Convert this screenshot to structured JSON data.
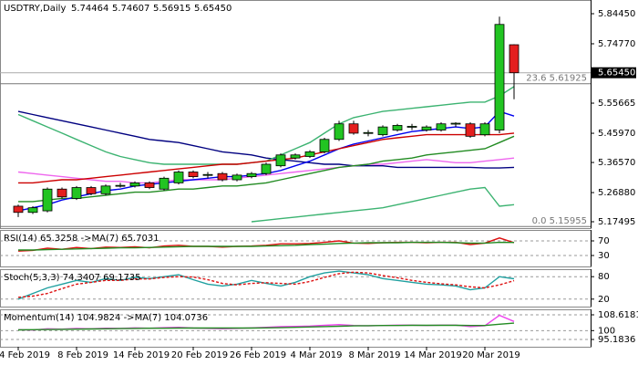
{
  "chart_data": [
    {
      "type": "candlestick",
      "title": "USDTRY,Daily",
      "ohlc_labels": [
        "5.74464",
        "5.74607",
        "5.56915",
        "5.65450"
      ],
      "categories": [
        "4 Feb 2019",
        null,
        null,
        null,
        "8 Feb 2019",
        null,
        null,
        null,
        "14 Feb 2019",
        null,
        null,
        null,
        "20 Feb 2019",
        null,
        null,
        null,
        "26 Feb 2019",
        null,
        null,
        null,
        "4 Mar 2019",
        null,
        null,
        null,
        "8 Mar 2019",
        null,
        null,
        null,
        "14 Mar 2019",
        null,
        null,
        null,
        "20 Mar 2019",
        null,
        null
      ],
      "open": [
        5.225,
        5.205,
        5.21,
        5.28,
        5.25,
        5.285,
        5.265,
        5.29,
        5.29,
        5.3,
        5.28,
        5.3,
        5.335,
        5.325,
        5.33,
        5.31,
        5.32,
        5.33,
        5.355,
        5.38,
        5.385,
        5.4,
        5.44,
        5.49,
        5.46,
        5.455,
        5.47,
        5.48,
        5.47,
        5.47,
        5.49,
        5.49,
        5.455,
        5.47,
        5.74464
      ],
      "high": [
        5.23,
        5.225,
        5.285,
        5.285,
        5.29,
        5.29,
        5.295,
        5.3,
        5.305,
        5.305,
        5.32,
        5.34,
        5.34,
        5.335,
        5.335,
        5.33,
        5.335,
        5.365,
        5.395,
        5.395,
        5.405,
        5.445,
        5.5,
        5.5,
        5.47,
        5.485,
        5.49,
        5.49,
        5.485,
        5.495,
        5.495,
        5.495,
        5.495,
        5.835,
        5.74607
      ],
      "low": [
        5.19,
        5.2,
        5.205,
        5.25,
        5.245,
        5.26,
        5.26,
        5.285,
        5.285,
        5.28,
        5.275,
        5.295,
        5.315,
        5.315,
        5.305,
        5.305,
        5.315,
        5.325,
        5.35,
        5.375,
        5.38,
        5.395,
        5.435,
        5.455,
        5.45,
        5.45,
        5.465,
        5.47,
        5.465,
        5.465,
        5.48,
        5.445,
        5.45,
        5.46,
        5.56915
      ],
      "close": [
        5.205,
        5.22,
        5.28,
        5.255,
        5.285,
        5.265,
        5.29,
        5.292,
        5.3,
        5.285,
        5.315,
        5.335,
        5.32,
        5.327,
        5.31,
        5.325,
        5.33,
        5.36,
        5.39,
        5.39,
        5.4,
        5.44,
        5.49,
        5.46,
        5.462,
        5.48,
        5.485,
        5.482,
        5.48,
        5.49,
        5.492,
        5.45,
        5.49,
        5.81,
        5.6545
      ],
      "up_color": "#22c422",
      "down_color": "#e41e1e",
      "series": [
        {
          "color": "#000080",
          "values": [
            5.53,
            5.52,
            5.51,
            5.5,
            5.49,
            5.48,
            5.47,
            5.46,
            5.45,
            5.44,
            5.435,
            5.43,
            5.42,
            5.41,
            5.4,
            5.395,
            5.39,
            5.38,
            5.375,
            5.37,
            5.365,
            5.36,
            5.36,
            5.355,
            5.355,
            5.355,
            5.35,
            5.35,
            5.35,
            5.35,
            5.35,
            5.35,
            5.348,
            5.348,
            5.35
          ]
        },
        {
          "color": "#3cb371",
          "values": [
            5.52,
            5.5,
            5.48,
            5.46,
            5.44,
            5.42,
            5.4,
            5.385,
            5.375,
            5.365,
            5.36,
            5.36,
            5.36,
            5.36,
            5.36,
            5.36,
            5.365,
            5.37,
            5.39,
            5.41,
            5.43,
            5.46,
            5.49,
            5.51,
            5.52,
            5.53,
            5.535,
            5.54,
            5.545,
            5.55,
            5.555,
            5.56,
            5.56,
            5.58,
            5.61
          ]
        },
        {
          "color": "#3cb371",
          "values": [
            null,
            null,
            null,
            null,
            null,
            null,
            null,
            null,
            null,
            null,
            null,
            null,
            null,
            null,
            null,
            null,
            5.175,
            5.18,
            5.185,
            5.19,
            5.195,
            5.2,
            5.205,
            5.21,
            5.215,
            5.22,
            5.23,
            5.24,
            5.25,
            5.26,
            5.27,
            5.28,
            5.285,
            5.225,
            5.23
          ]
        },
        {
          "color": "#ee66ee",
          "values": [
            5.335,
            5.33,
            5.325,
            5.32,
            5.315,
            5.31,
            5.305,
            5.305,
            5.3,
            5.3,
            5.305,
            5.31,
            5.31,
            5.31,
            5.31,
            5.315,
            5.32,
            5.325,
            5.33,
            5.335,
            5.34,
            5.345,
            5.35,
            5.355,
            5.36,
            5.36,
            5.365,
            5.37,
            5.375,
            5.37,
            5.365,
            5.365,
            5.37,
            5.375,
            5.38
          ]
        },
        {
          "color": "#228b22",
          "values": [
            5.24,
            5.24,
            5.245,
            5.25,
            5.25,
            5.255,
            5.26,
            5.265,
            5.27,
            5.27,
            5.275,
            5.28,
            5.28,
            5.285,
            5.29,
            5.29,
            5.295,
            5.3,
            5.31,
            5.32,
            5.33,
            5.34,
            5.35,
            5.355,
            5.36,
            5.37,
            5.375,
            5.38,
            5.39,
            5.395,
            5.4,
            5.405,
            5.41,
            5.43,
            5.45
          ]
        },
        {
          "color": "#0000ee",
          "values": [
            5.21,
            5.22,
            5.23,
            5.245,
            5.255,
            5.265,
            5.275,
            5.28,
            5.29,
            5.295,
            5.3,
            5.305,
            5.31,
            5.315,
            5.32,
            5.32,
            5.325,
            5.33,
            5.34,
            5.355,
            5.37,
            5.39,
            5.41,
            5.425,
            5.435,
            5.445,
            5.455,
            5.465,
            5.47,
            5.475,
            5.48,
            5.475,
            5.48,
            5.53,
            5.515
          ]
        },
        {
          "color": "#cc0000",
          "values": [
            5.3,
            5.3,
            5.305,
            5.31,
            5.31,
            5.315,
            5.32,
            5.325,
            5.33,
            5.335,
            5.34,
            5.345,
            5.35,
            5.355,
            5.36,
            5.36,
            5.365,
            5.37,
            5.375,
            5.38,
            5.39,
            5.4,
            5.41,
            5.42,
            5.43,
            5.44,
            5.445,
            5.45,
            5.455,
            5.455,
            5.455,
            5.455,
            5.455,
            5.455,
            5.46
          ]
        }
      ],
      "ylim": [
        5.1544,
        5.8886
      ],
      "yticks": [
        {
          "value": 5.8445,
          "label": "5.84450"
        },
        {
          "value": 5.7477,
          "label": "5.74770"
        },
        {
          "value": 5.55665,
          "label": "5.55665"
        },
        {
          "value": 5.4597,
          "label": "5.45970"
        },
        {
          "value": 5.3657,
          "label": "5.36570"
        },
        {
          "value": 5.2688,
          "label": "5.26880"
        },
        {
          "value": 5.17495,
          "label": "5.17495"
        }
      ],
      "price_marker": {
        "value": 5.6545,
        "label": "5.65450"
      },
      "fib_levels": [
        {
          "value": 5.61925,
          "label": "23.6 5.61925"
        },
        {
          "value": 5.15955,
          "label": "0.0 5.15955"
        }
      ]
    },
    {
      "type": "line",
      "title": "RSI(14) 65.3258 ->MA(7) 65.7031",
      "series": [
        {
          "color": "#dd1111",
          "values": [
            42,
            44,
            50,
            47,
            52,
            49,
            53,
            52,
            54,
            51,
            56,
            58,
            55,
            55,
            53,
            55,
            56,
            58,
            62,
            62,
            63,
            66,
            70,
            64,
            63,
            65,
            66,
            66,
            65,
            66,
            66,
            60,
            64,
            78,
            65.3258
          ]
        },
        {
          "color": "#228b22",
          "values": [
            45,
            45,
            46,
            47,
            48,
            49,
            50,
            51,
            51,
            52,
            53,
            54,
            55,
            55,
            55,
            55,
            55,
            56,
            57,
            58,
            60,
            61,
            63,
            64,
            65,
            65,
            65,
            66,
            66,
            66,
            65,
            64,
            64,
            66,
            65.7031
          ]
        }
      ],
      "ylim": [
        0,
        100
      ],
      "yticks": [
        70,
        30
      ],
      "level_lines": true
    },
    {
      "type": "line",
      "title": "Stoch(5,3,3) 74.3407 69.1735",
      "series": [
        {
          "color": "#20a0a0",
          "values": [
            20,
            35,
            50,
            60,
            70,
            65,
            75,
            70,
            78,
            75,
            80,
            85,
            72,
            60,
            55,
            60,
            70,
            62,
            55,
            65,
            80,
            90,
            95,
            90,
            85,
            75,
            70,
            65,
            60,
            58,
            55,
            45,
            50,
            80,
            74.3407
          ]
        },
        {
          "color": "#dd1111",
          "dashed": true,
          "values": [
            25,
            28,
            35,
            48,
            60,
            65,
            70,
            70,
            74,
            74,
            78,
            80,
            79,
            72,
            62,
            58,
            62,
            64,
            62,
            60,
            67,
            78,
            88,
            92,
            90,
            83,
            77,
            70,
            65,
            61,
            58,
            53,
            50,
            58,
            69.1735
          ]
        }
      ],
      "ylim": [
        0,
        100
      ],
      "yticks": [
        80,
        20
      ],
      "level_lines": true
    },
    {
      "type": "line",
      "title": "Momentum(14) 104.9824 ->MA(7) 104.0736",
      "series": [
        {
          "color": "#ee44ee",
          "values": [
            100.5,
            100.3,
            101,
            100.8,
            101.2,
            101,
            101.3,
            101.2,
            101.5,
            101.3,
            101.6,
            101.8,
            101.4,
            101.2,
            101,
            101.2,
            101.5,
            101.8,
            102.2,
            102.3,
            102.5,
            102.9,
            103.3,
            102.8,
            102.6,
            102.8,
            103,
            103,
            102.8,
            103,
            103,
            102.2,
            102.7,
            108.3,
            104.9824
          ]
        },
        {
          "color": "#228b22",
          "values": [
            100.4,
            100.5,
            100.6,
            100.7,
            100.8,
            100.9,
            101,
            101.1,
            101.2,
            101.3,
            101.3,
            101.4,
            101.4,
            101.4,
            101.4,
            101.4,
            101.4,
            101.5,
            101.6,
            101.8,
            102,
            102.2,
            102.4,
            102.6,
            102.7,
            102.8,
            102.8,
            102.9,
            102.9,
            102.9,
            102.9,
            102.8,
            102.8,
            103.5,
            104.0736
          ]
        }
      ],
      "ylim": [
        91.2,
        111.6
      ],
      "yticks": [
        108.6181,
        100,
        95.1836
      ],
      "level_lines": true
    }
  ]
}
